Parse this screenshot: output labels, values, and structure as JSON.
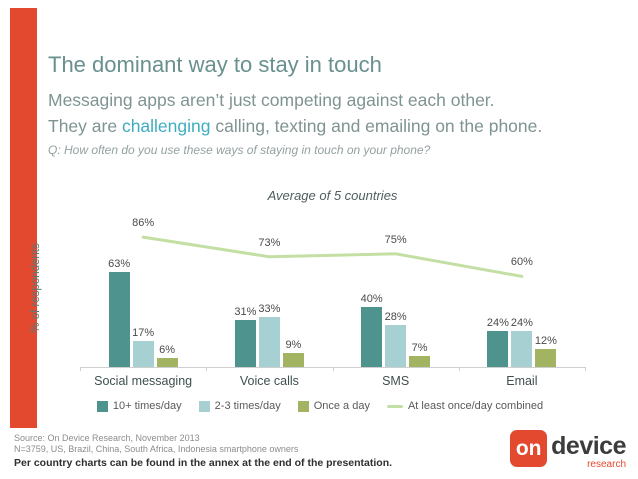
{
  "slide": {
    "accent_red": "#e2492f"
  },
  "header": {
    "title": "The dominant way to stay in touch",
    "subtitle_line1": "Messaging apps aren’t just competing against each other.",
    "subtitle_line2_pre": "They are ",
    "subtitle_highlight": "challenging",
    "subtitle_line2_post": " calling, texting and emailing on the phone.",
    "question": "Q: How often do you use these ways of staying in touch on your phone?"
  },
  "chart_data": {
    "type": "bar",
    "title": "Average of 5 countries",
    "ylabel": "% of respondents",
    "xlabel": "",
    "ylim": [
      0,
      100
    ],
    "grid": false,
    "legend_position": "bottom",
    "value_suffix": "%",
    "categories": [
      "Social messaging",
      "Voice calls",
      "SMS",
      "Email"
    ],
    "series": [
      {
        "name": "10+ times/day",
        "color": "#4f938e",
        "values": [
          63,
          31,
          40,
          24
        ]
      },
      {
        "name": "2-3 times/day",
        "color": "#a6d0d2",
        "values": [
          17,
          33,
          28,
          24
        ]
      },
      {
        "name": "Once a day",
        "color": "#a2b362",
        "values": [
          6,
          9,
          7,
          12
        ]
      }
    ],
    "line_series": {
      "name": "At least once/day combined",
      "color": "#c3dfa3",
      "values": [
        86,
        73,
        75,
        60
      ]
    }
  },
  "footer": {
    "source_line1": "Source: On Device Research, November 2013",
    "source_line2": "N=3759, US, Brazil, China, South Africa, Indonesia smartphone owners",
    "note": "Per country charts can be found in the annex at the end of the presentation."
  },
  "logo": {
    "on": "on",
    "device": "device",
    "research": "research"
  }
}
